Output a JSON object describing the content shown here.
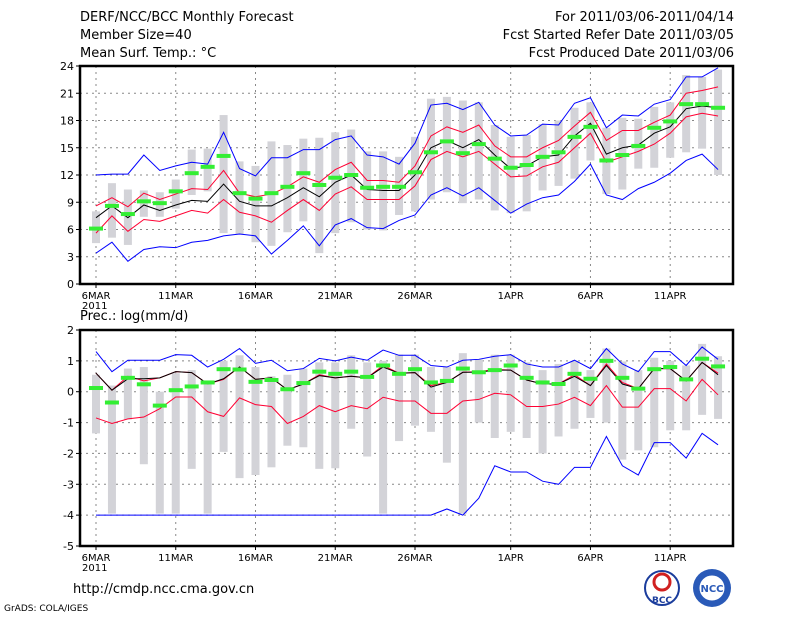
{
  "header": {
    "title": "DERF/NCC/BCC Monthly Forecast",
    "member_size": "Member Size=40",
    "variable": "Mean Surf. Temp.: °C",
    "period": "For 2011/03/06-2011/04/14",
    "start_date": "Fcst Started Refer Date 2011/03/05",
    "produced_date": "Fcst Produced Date 2011/03/06"
  },
  "footer": {
    "url": "http://cmdp.ncc.cma.gov.cn",
    "credit": "GrADS: COLA/IGES",
    "logo_bcc": "BCC",
    "logo_ncc": "NCC"
  },
  "colors": {
    "max_min": "#0000ff",
    "spread": "#ff0033",
    "mean": "#000000",
    "median": "#33ee33",
    "range": "#d3d3d8"
  },
  "chart_data": [
    {
      "type": "line",
      "title": "Mean Surf. Temp.: °C",
      "x_tick_labels": [
        "6MAR",
        "11MAR",
        "16MAR",
        "21MAR",
        "26MAR",
        "1APR",
        "6APR",
        "11APR"
      ],
      "x_tick_days": [
        0,
        5,
        10,
        15,
        20,
        26,
        31,
        36
      ],
      "year_label": "2011",
      "ylim": [
        0,
        24
      ],
      "yticks": [
        0,
        3,
        6,
        9,
        12,
        15,
        18,
        21,
        24
      ],
      "grid": true,
      "days": 40,
      "series": {
        "max": [
          12.0,
          12.1,
          12.1,
          14.2,
          12.5,
          13.0,
          13.4,
          13.2,
          16.7,
          12.7,
          11.9,
          13.9,
          13.9,
          14.8,
          14.8,
          15.9,
          16.3,
          14.2,
          14.0,
          13.2,
          15.5,
          19.7,
          19.9,
          19.2,
          20.0,
          17.5,
          16.3,
          16.4,
          17.6,
          17.5,
          19.9,
          20.5,
          17.2,
          18.6,
          18.5,
          19.8,
          20.3,
          22.8,
          22.8,
          23.8
        ],
        "upper": [
          8.6,
          9.5,
          8.5,
          10.0,
          9.3,
          9.9,
          10.5,
          10.4,
          12.5,
          10.0,
          9.6,
          9.9,
          10.7,
          11.8,
          11.2,
          12.6,
          13.4,
          11.4,
          11.4,
          11.2,
          13.0,
          16.3,
          17.3,
          16.7,
          17.5,
          15.2,
          14.0,
          14.0,
          15.0,
          15.8,
          17.4,
          18.9,
          15.8,
          16.9,
          16.9,
          17.8,
          18.6,
          21.0,
          21.3,
          21.7
        ],
        "mean": [
          7.3,
          8.6,
          7.3,
          8.7,
          8.1,
          8.7,
          9.2,
          9.1,
          11.0,
          9.1,
          8.6,
          8.6,
          9.5,
          10.6,
          9.6,
          11.2,
          12.0,
          10.4,
          10.3,
          10.3,
          12.0,
          15.0,
          15.8,
          15.0,
          15.9,
          14.2,
          12.7,
          13.0,
          14.0,
          14.2,
          16.3,
          17.7,
          14.3,
          15.0,
          15.3,
          16.6,
          17.3,
          19.3,
          19.6,
          19.4
        ],
        "lower": [
          5.6,
          7.5,
          5.8,
          7.1,
          6.9,
          7.5,
          8.1,
          7.8,
          9.3,
          7.9,
          7.5,
          6.8,
          8.1,
          9.3,
          8.1,
          9.9,
          10.7,
          9.3,
          9.3,
          9.3,
          10.8,
          13.7,
          14.6,
          14.0,
          14.6,
          13.2,
          11.8,
          11.9,
          12.9,
          13.4,
          15.0,
          16.6,
          13.4,
          14.0,
          14.6,
          15.4,
          16.6,
          18.4,
          18.8,
          18.5
        ],
        "min": [
          3.4,
          4.6,
          2.5,
          3.8,
          4.1,
          4.0,
          4.6,
          4.8,
          5.3,
          5.5,
          5.3,
          3.3,
          4.8,
          6.4,
          4.2,
          6.5,
          7.2,
          6.2,
          6.1,
          7.0,
          7.6,
          9.8,
          10.6,
          9.7,
          10.6,
          9.2,
          7.8,
          8.8,
          9.5,
          9.8,
          11.3,
          13.2,
          9.8,
          9.3,
          10.5,
          11.2,
          12.2,
          13.6,
          14.3,
          12.6
        ],
        "median": [
          6.1,
          8.6,
          7.7,
          9.1,
          8.9,
          10.2,
          12.2,
          12.9,
          14.1,
          10.0,
          9.4,
          10.0,
          10.7,
          12.2,
          10.9,
          11.7,
          12.0,
          10.6,
          10.7,
          10.7,
          12.3,
          14.5,
          15.7,
          14.4,
          15.4,
          13.8,
          12.8,
          13.1,
          14.0,
          14.5,
          16.2,
          17.3,
          13.6,
          14.2,
          15.2,
          17.2,
          17.9,
          19.8,
          19.8,
          19.4
        ],
        "range_low": [
          4.5,
          5.1,
          4.3,
          7.4,
          7.4,
          8.3,
          9.8,
          10.2,
          5.6,
          5.5,
          4.6,
          4.2,
          5.7,
          6.9,
          3.4,
          5.6,
          6.8,
          6.0,
          5.9,
          7.6,
          8.0,
          9.3,
          10.1,
          8.9,
          9.3,
          8.1,
          7.8,
          8.0,
          10.3,
          10.8,
          11.6,
          13.6,
          9.9,
          10.4,
          12.7,
          12.8,
          13.9,
          14.5,
          14.9,
          12.0
        ],
        "range_high": [
          8.0,
          11.1,
          10.4,
          10.3,
          10.1,
          11.5,
          14.8,
          14.9,
          18.6,
          13.5,
          13.0,
          15.7,
          15.3,
          16.0,
          16.1,
          16.7,
          17.0,
          14.6,
          14.6,
          14.0,
          16.2,
          20.4,
          20.6,
          20.2,
          20.0,
          17.5,
          16.2,
          16.4,
          17.6,
          18.0,
          19.4,
          20.0,
          17.2,
          18.3,
          18.2,
          19.5,
          20.0,
          23.0,
          22.8,
          23.6
        ]
      }
    },
    {
      "type": "line",
      "title": "Prec.: log(mm/d)",
      "x_tick_labels": [
        "6MAR",
        "11MAR",
        "16MAR",
        "21MAR",
        "26MAR",
        "1APR",
        "6APR",
        "11APR"
      ],
      "x_tick_days": [
        0,
        5,
        10,
        15,
        20,
        26,
        31,
        36
      ],
      "year_label": "2011",
      "ylim": [
        -5,
        2
      ],
      "yticks": [
        -5,
        -4,
        -3,
        -2,
        -1,
        0,
        1,
        2
      ],
      "grid": true,
      "days": 40,
      "series": {
        "max": [
          1.3,
          0.65,
          1.02,
          1.02,
          1.02,
          1.2,
          1.18,
          0.8,
          1.05,
          1.4,
          0.92,
          1.02,
          0.68,
          0.75,
          1.08,
          1.0,
          1.12,
          1.02,
          1.35,
          1.18,
          1.18,
          0.85,
          0.8,
          1.02,
          1.05,
          1.15,
          1.2,
          0.9,
          0.8,
          0.8,
          1.02,
          0.75,
          1.4,
          0.9,
          0.65,
          1.3,
          1.3,
          0.85,
          1.45,
          1.05
        ],
        "upper": [
          0.6,
          0.05,
          0.5,
          0.35,
          0.45,
          0.65,
          0.62,
          0.25,
          0.4,
          0.8,
          0.4,
          0.45,
          0.06,
          0.25,
          0.55,
          0.45,
          0.5,
          0.45,
          0.85,
          0.6,
          0.62,
          0.2,
          0.3,
          0.63,
          0.65,
          0.72,
          0.7,
          0.38,
          0.25,
          0.25,
          0.55,
          0.2,
          0.9,
          0.3,
          0.1,
          0.75,
          0.75,
          0.35,
          0.95,
          0.6
        ],
        "mean": [
          0.6,
          0.05,
          0.42,
          0.42,
          0.45,
          0.65,
          0.62,
          0.25,
          0.42,
          0.8,
          0.4,
          0.45,
          0.06,
          0.25,
          0.52,
          0.45,
          0.5,
          0.45,
          0.8,
          0.6,
          0.62,
          0.15,
          0.3,
          0.63,
          0.63,
          0.7,
          0.7,
          0.38,
          0.25,
          0.25,
          0.5,
          0.2,
          0.85,
          0.25,
          0.1,
          0.75,
          0.75,
          0.35,
          0.95,
          0.55
        ],
        "lower": [
          -0.85,
          -1.03,
          -0.88,
          -0.82,
          -0.55,
          -0.17,
          -0.17,
          -0.65,
          -0.8,
          -0.2,
          -0.42,
          -0.48,
          -1.03,
          -0.8,
          -0.45,
          -0.65,
          -0.45,
          -0.55,
          -0.18,
          -0.3,
          -0.3,
          -0.7,
          -0.7,
          -0.3,
          -0.25,
          -0.05,
          -0.1,
          -0.48,
          -0.48,
          -0.4,
          -0.18,
          -0.45,
          0.2,
          -0.5,
          -0.5,
          0.1,
          0.1,
          -0.3,
          0.4,
          -0.1
        ],
        "min": [
          -4,
          -4,
          -4,
          -4,
          -4,
          -4,
          -4,
          -4,
          -4,
          -4,
          -4,
          -4,
          -4,
          -4,
          -4,
          -4,
          -4,
          -4,
          -4,
          -4,
          -4,
          -4,
          -3.8,
          -4,
          -3.45,
          -2.4,
          -2.6,
          -2.6,
          -2.9,
          -3.0,
          -2.45,
          -2.45,
          -1.45,
          -2.4,
          -2.7,
          -1.65,
          -1.65,
          -2.15,
          -1.35,
          -1.72
        ],
        "median": [
          0.12,
          -0.35,
          0.45,
          0.24,
          -0.45,
          0.05,
          0.17,
          0.3,
          0.73,
          0.72,
          0.32,
          0.38,
          0.08,
          0.28,
          0.65,
          0.58,
          0.65,
          0.48,
          0.85,
          0.58,
          0.73,
          0.3,
          0.35,
          0.75,
          0.63,
          0.7,
          0.85,
          0.45,
          0.3,
          0.25,
          0.58,
          0.42,
          1.0,
          0.45,
          0.1,
          0.73,
          0.8,
          0.4,
          1.07,
          0.82
        ],
        "range_low": [
          -1.35,
          -3.95,
          -0.9,
          -2.35,
          -3.95,
          -3.95,
          -2.5,
          -3.95,
          -1.95,
          -2.8,
          -2.7,
          -2.45,
          -1.75,
          -1.8,
          -2.5,
          -2.48,
          -1.2,
          -2.1,
          -3.95,
          -1.6,
          -1.1,
          -1.3,
          -2.3,
          -3.95,
          -1.0,
          -1.5,
          -1.3,
          -1.5,
          -2.0,
          -1.45,
          -1.2,
          -0.85,
          -1.0,
          -2.2,
          -1.9,
          -1.8,
          -1.25,
          -1.25,
          -0.75,
          -0.88
        ],
        "range_high": [
          0.55,
          0.2,
          0.75,
          0.8,
          0.0,
          0.6,
          0.7,
          0.35,
          1.0,
          1.18,
          0.8,
          0.5,
          0.55,
          0.75,
          0.95,
          0.95,
          1.18,
          0.95,
          1.0,
          1.2,
          1.2,
          0.8,
          0.8,
          1.25,
          1.05,
          1.2,
          1.2,
          0.95,
          0.7,
          0.9,
          1.0,
          0.7,
          1.4,
          0.98,
          0.7,
          1.1,
          1.0,
          0.85,
          1.55,
          1.15
        ]
      }
    }
  ]
}
